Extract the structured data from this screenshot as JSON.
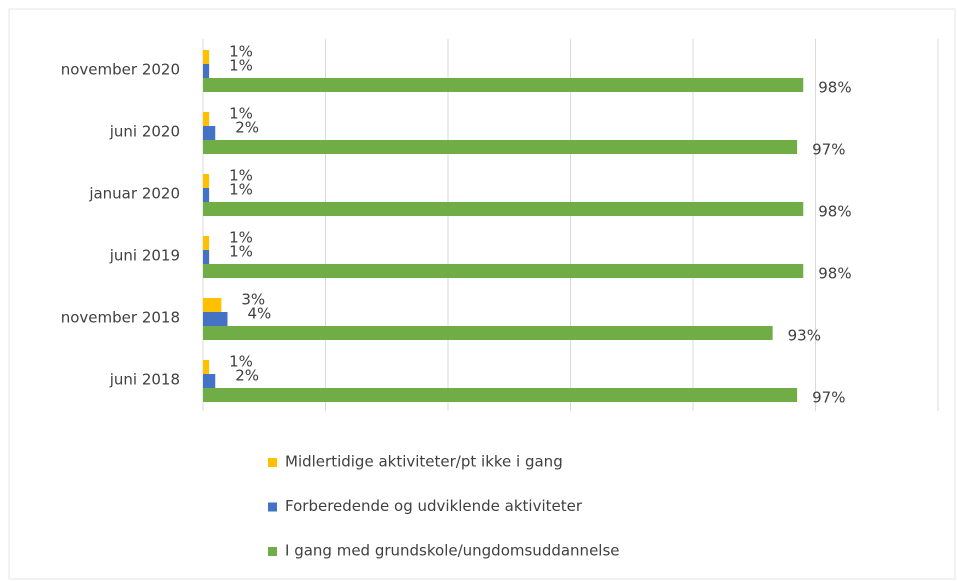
{
  "chart_data": {
    "type": "barh",
    "categories": [
      "november 2020",
      "juni 2020",
      "januar 2020",
      "juni 2019",
      "november 2018",
      "juni 2018"
    ],
    "series": [
      {
        "name": "Midlertidige aktiviteter/pt ikke i gang",
        "color": "#ffc000",
        "values": [
          1,
          1,
          1,
          1,
          3,
          1
        ],
        "value_labels": [
          "1%",
          "1%",
          "1%",
          "1%",
          "3%",
          "1%"
        ]
      },
      {
        "name": "Forberedende og udviklende aktiviteter",
        "color": "#4472c4",
        "values": [
          1,
          2,
          1,
          1,
          4,
          2
        ],
        "value_labels": [
          "1%",
          "2%",
          "1%",
          "1%",
          "4%",
          "2%"
        ]
      },
      {
        "name": "I gang med grundskole/ungdomsuddannelse",
        "color": "#70ad47",
        "values": [
          98,
          97,
          98,
          98,
          93,
          97
        ],
        "value_labels": [
          "98%",
          "97%",
          "98%",
          "98%",
          "93%",
          "97%"
        ]
      }
    ],
    "xlim": [
      0,
      120
    ],
    "xticks": [
      0,
      20,
      40,
      60,
      80,
      100,
      120
    ],
    "grid": true,
    "legend": "bottom"
  }
}
